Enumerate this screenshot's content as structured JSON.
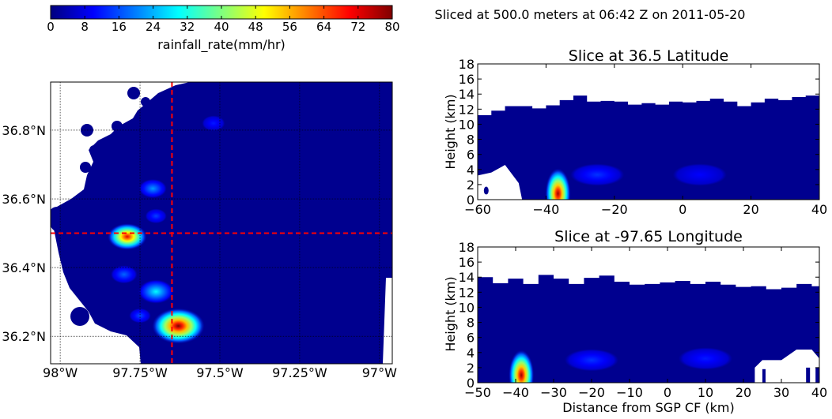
{
  "figure": {
    "suptitle": "Sliced at 500.0 meters at 06:42 Z on 2011-05-20"
  },
  "colorbar": {
    "label": "rainfall_rate(mm/hr)",
    "ticks": [
      "0",
      "8",
      "16",
      "24",
      "32",
      "40",
      "48",
      "56",
      "64",
      "72",
      "80"
    ],
    "vmin": 0,
    "vmax": 80,
    "colormap": "jet",
    "stops": [
      "#00007f",
      "#0000ff",
      "#007fff",
      "#00ffff",
      "#7fff7f",
      "#ffff00",
      "#ff7f00",
      "#ff0000",
      "#7f0000"
    ]
  },
  "map": {
    "lat_tick_labels": [
      "36.8°N",
      "36.6°N",
      "36.4°N",
      "36.2°N"
    ],
    "lon_tick_labels": [
      "98°W",
      "97.75°W",
      "97.5°W",
      "97.25°W",
      "97°W"
    ],
    "slice_color": "#ff0000"
  },
  "chart_data": [
    {
      "id": "plan-view",
      "type": "heatmap",
      "title": "",
      "xlabel": "",
      "ylabel": "",
      "grid": true,
      "lat_ticks": [
        36.8,
        36.6,
        36.4,
        36.2
      ],
      "lon_ticks": [
        -98.0,
        -97.75,
        -97.5,
        -97.25,
        -97.0
      ],
      "xlim": [
        -98.03,
        -96.96
      ],
      "ylim": [
        36.12,
        36.94
      ],
      "slice_lines": {
        "latitude": 36.5,
        "longitude": -97.65
      },
      "cells": [
        {
          "lon": -97.63,
          "lat": 36.23,
          "value": 80
        },
        {
          "lon": -97.79,
          "lat": 36.49,
          "value": 72
        },
        {
          "lon": -97.7,
          "lat": 36.33,
          "value": 30
        },
        {
          "lon": -97.71,
          "lat": 36.63,
          "value": 22
        },
        {
          "lon": -97.8,
          "lat": 36.38,
          "value": 18
        },
        {
          "lon": -97.75,
          "lat": 36.26,
          "value": 16
        },
        {
          "lon": -97.52,
          "lat": 36.82,
          "value": 12
        },
        {
          "lon": -97.7,
          "lat": 36.55,
          "value": 15
        }
      ]
    },
    {
      "id": "lat-slice",
      "type": "heatmap",
      "title": "Slice at 36.5 Latitude",
      "xlabel": "",
      "ylabel": "Height (km)",
      "xlim": [
        -60,
        40
      ],
      "ylim": [
        0,
        18
      ],
      "x_ticks": [
        -60,
        -40,
        -20,
        0,
        20,
        40
      ],
      "y_ticks": [
        0,
        2,
        4,
        6,
        8,
        10,
        12,
        14,
        16,
        18
      ],
      "echo_top_km": [
        [
          -60,
          11.2
        ],
        [
          -56,
          11.8
        ],
        [
          -52,
          12.4
        ],
        [
          -48,
          12.4
        ],
        [
          -44,
          12.1
        ],
        [
          -40,
          12.5
        ],
        [
          -36,
          13.2
        ],
        [
          -32,
          13.8
        ],
        [
          -28,
          13.0
        ],
        [
          -24,
          13.1
        ],
        [
          -20,
          13.0
        ],
        [
          -16,
          12.6
        ],
        [
          -12,
          12.8
        ],
        [
          -8,
          12.6
        ],
        [
          -4,
          13.0
        ],
        [
          0,
          12.9
        ],
        [
          4,
          13.1
        ],
        [
          8,
          13.4
        ],
        [
          12,
          13.0
        ],
        [
          16,
          12.4
        ],
        [
          20,
          12.9
        ],
        [
          24,
          13.4
        ],
        [
          28,
          13.2
        ],
        [
          32,
          13.6
        ],
        [
          36,
          13.8
        ],
        [
          40,
          13.0
        ]
      ],
      "base_gap": {
        "x_start": -60,
        "x_end": -47
      },
      "cores": [
        {
          "x": -36.5,
          "z": 0.8,
          "value": 78
        },
        {
          "x": -25,
          "z": 3.3,
          "value": 14
        },
        {
          "x": 5,
          "z": 3.3,
          "value": 10
        }
      ]
    },
    {
      "id": "lon-slice",
      "type": "heatmap",
      "title": "Slice at -97.65 Longitude",
      "xlabel": "Distance from SGP CF (km)",
      "ylabel": "Height (km)",
      "xlim": [
        -50,
        40
      ],
      "ylim": [
        0,
        18
      ],
      "x_ticks": [
        -50,
        -40,
        -30,
        -20,
        -10,
        0,
        10,
        20,
        30,
        40
      ],
      "y_ticks": [
        0,
        2,
        4,
        6,
        8,
        10,
        12,
        14,
        16,
        18
      ],
      "echo_top_km": [
        [
          -50,
          14.0
        ],
        [
          -46,
          13.2
        ],
        [
          -42,
          13.8
        ],
        [
          -38,
          13.1
        ],
        [
          -34,
          14.3
        ],
        [
          -30,
          13.8
        ],
        [
          -26,
          13.1
        ],
        [
          -22,
          13.9
        ],
        [
          -18,
          14.2
        ],
        [
          -14,
          13.4
        ],
        [
          -10,
          13.0
        ],
        [
          -6,
          13.1
        ],
        [
          -2,
          13.3
        ],
        [
          2,
          13.5
        ],
        [
          6,
          13.1
        ],
        [
          10,
          13.4
        ],
        [
          14,
          13.0
        ],
        [
          18,
          12.7
        ],
        [
          22,
          12.8
        ],
        [
          26,
          12.4
        ],
        [
          30,
          12.6
        ],
        [
          34,
          13.1
        ],
        [
          38,
          12.8
        ],
        [
          40,
          12.5
        ]
      ],
      "notch": {
        "x_start": 23,
        "x_end": 40,
        "z_top": 4.4
      },
      "cores": [
        {
          "x": -38.5,
          "z": 1.0,
          "value": 78
        },
        {
          "x": -20,
          "z": 3.0,
          "value": 14
        },
        {
          "x": 10,
          "z": 3.2,
          "value": 12
        }
      ]
    }
  ]
}
